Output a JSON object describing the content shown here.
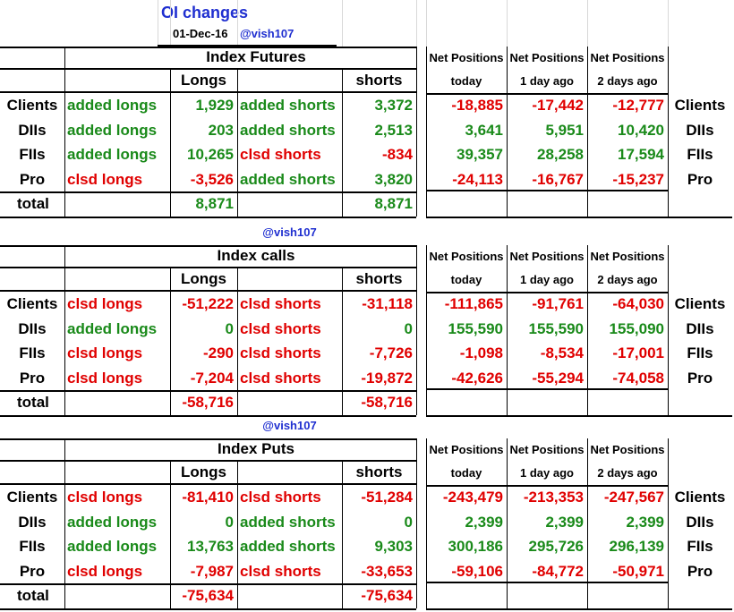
{
  "title": "OI changes",
  "date": "01-Dec-16",
  "handle": "@vish107",
  "colors": {
    "green": "#1a8a1a",
    "red": "#e00000",
    "blue": "#1f2fd0"
  },
  "labels": {
    "longs": "Longs",
    "shorts": "shorts",
    "net_positions": "Net Positions",
    "today": "today",
    "day1": "1 day ago",
    "day2": "2 days ago",
    "total": "total"
  },
  "sections": [
    {
      "name": "Index Futures",
      "show_handle": false,
      "rows": [
        {
          "party": "Clients",
          "long_action": "added longs",
          "long_val": "1,929",
          "short_action": "added shorts",
          "short_val": "3,372",
          "net": [
            "-18,885",
            "-17,442",
            "-12,777"
          ]
        },
        {
          "party": "DIIs",
          "long_action": "added longs",
          "long_val": "203",
          "short_action": "added shorts",
          "short_val": "2,513",
          "net": [
            "3,641",
            "5,951",
            "10,420"
          ]
        },
        {
          "party": "FIIs",
          "long_action": "added longs",
          "long_val": "10,265",
          "short_action": "clsd shorts",
          "short_val": "-834",
          "net": [
            "39,357",
            "28,258",
            "17,594"
          ]
        },
        {
          "party": "Pro",
          "long_action": "clsd longs",
          "long_val": "-3,526",
          "short_action": "added shorts",
          "short_val": "3,820",
          "net": [
            "-24,113",
            "-16,767",
            "-15,237"
          ]
        }
      ],
      "total_long": "8,871",
      "total_short": "8,871"
    },
    {
      "name": "Index calls",
      "show_handle": true,
      "rows": [
        {
          "party": "Clients",
          "long_action": "clsd longs",
          "long_val": "-51,222",
          "short_action": "clsd shorts",
          "short_val": "-31,118",
          "net": [
            "-111,865",
            "-91,761",
            "-64,030"
          ]
        },
        {
          "party": "DIIs",
          "long_action": "added longs",
          "long_val": "0",
          "short_action": "clsd shorts",
          "short_val": "0",
          "net": [
            "155,590",
            "155,590",
            "155,090"
          ]
        },
        {
          "party": "FIIs",
          "long_action": "clsd longs",
          "long_val": "-290",
          "short_action": "clsd shorts",
          "short_val": "-7,726",
          "net": [
            "-1,098",
            "-8,534",
            "-17,001"
          ]
        },
        {
          "party": "Pro",
          "long_action": "clsd longs",
          "long_val": "-7,204",
          "short_action": "clsd shorts",
          "short_val": "-19,872",
          "net": [
            "-42,626",
            "-55,294",
            "-74,058"
          ]
        }
      ],
      "total_long": "-58,716",
      "total_short": "-58,716"
    },
    {
      "name": "Index Puts",
      "show_handle": true,
      "rows": [
        {
          "party": "Clients",
          "long_action": "clsd longs",
          "long_val": "-81,410",
          "short_action": "clsd shorts",
          "short_val": "-51,284",
          "net": [
            "-243,479",
            "-213,353",
            "-247,567"
          ]
        },
        {
          "party": "DIIs",
          "long_action": "added longs",
          "long_val": "0",
          "short_action": "added shorts",
          "short_val": "0",
          "net": [
            "2,399",
            "2,399",
            "2,399"
          ]
        },
        {
          "party": "FIIs",
          "long_action": "added longs",
          "long_val": "13,763",
          "short_action": "added shorts",
          "short_val": "9,303",
          "net": [
            "300,186",
            "295,726",
            "296,139"
          ]
        },
        {
          "party": "Pro",
          "long_action": "clsd longs",
          "long_val": "-7,987",
          "short_action": "clsd shorts",
          "short_val": "-33,653",
          "net": [
            "-59,106",
            "-84,772",
            "-50,971"
          ]
        }
      ],
      "total_long": "-75,634",
      "total_short": "-75,634"
    }
  ]
}
